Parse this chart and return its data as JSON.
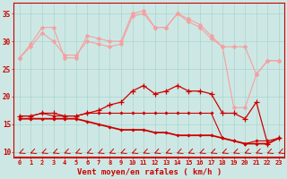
{
  "x": [
    0,
    1,
    2,
    3,
    4,
    5,
    6,
    7,
    8,
    9,
    10,
    11,
    12,
    13,
    14,
    15,
    16,
    17,
    18,
    19,
    20,
    21,
    22,
    23
  ],
  "gust_top": [
    27,
    29.5,
    32.5,
    32.5,
    27,
    27,
    31,
    30.5,
    30,
    30,
    35,
    35.5,
    32.5,
    32.5,
    35,
    34,
    33,
    31,
    29,
    29,
    29,
    24,
    26.5,
    26.5
  ],
  "gust_bot": [
    27,
    29,
    31.5,
    30,
    27.5,
    27.5,
    30,
    29.5,
    29,
    29.5,
    34.5,
    35,
    32.5,
    32.5,
    35,
    33.5,
    32.5,
    30.5,
    29,
    18,
    18,
    24,
    26.5,
    26.5
  ],
  "wind_top": [
    16.5,
    16.5,
    17,
    17,
    16.5,
    16.5,
    17,
    17.5,
    18.5,
    19,
    21,
    22,
    20.5,
    21,
    22,
    21,
    21,
    20.5,
    17,
    17,
    16,
    19,
    11.5,
    12.5
  ],
  "wind_mid": [
    16.5,
    16.5,
    17,
    16.5,
    16.5,
    16.5,
    17,
    17,
    17,
    17,
    17,
    17,
    17,
    17,
    17,
    17,
    17,
    17,
    12.5,
    12,
    11.5,
    12,
    12,
    12.5
  ],
  "wind_bot": [
    16,
    16,
    16,
    16,
    16,
    16,
    15.5,
    15,
    14.5,
    14,
    14,
    14,
    13.5,
    13.5,
    13,
    13,
    13,
    13,
    12.5,
    12,
    11.5,
    11.5,
    11.5,
    12.5
  ],
  "bg_color": "#cde8e4",
  "grid_color": "#aad4cf",
  "gust_color": "#f4a0a0",
  "wind_color": "#cc0000",
  "xlabel": "Vent moyen/en rafales ( km/h )",
  "ylim": [
    9.0,
    37.0
  ],
  "yticks": [
    10,
    15,
    20,
    25,
    30,
    35
  ],
  "xticks": [
    0,
    1,
    2,
    3,
    4,
    5,
    6,
    7,
    8,
    9,
    10,
    11,
    12,
    13,
    14,
    15,
    16,
    17,
    18,
    19,
    20,
    21,
    22,
    23
  ]
}
